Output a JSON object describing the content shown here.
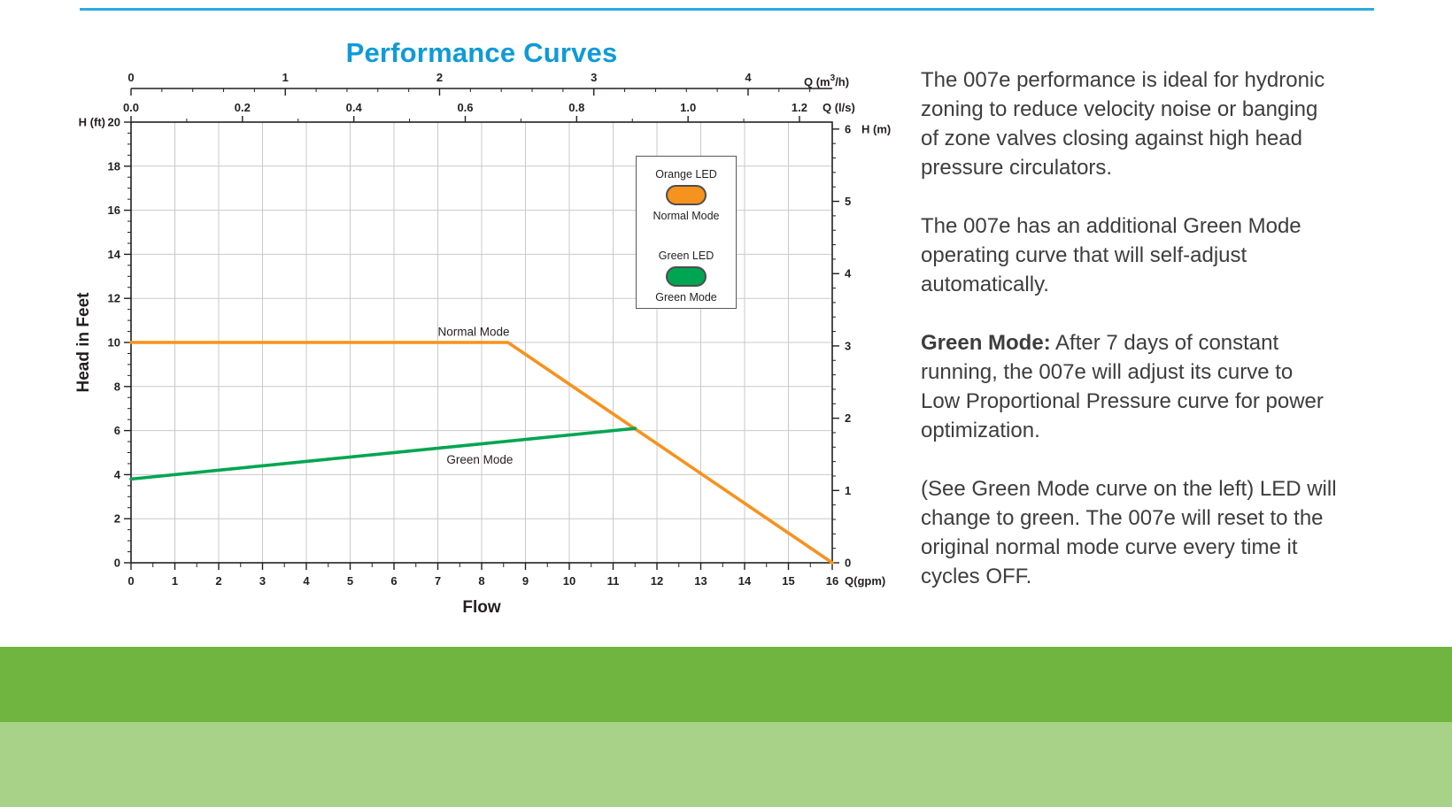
{
  "page": {
    "top_rule_color": "#29abe2"
  },
  "chart_data": {
    "type": "line",
    "title": "Performance Curves",
    "title_color": "#0f9ad8",
    "xlabel": "Flow",
    "ylabel": "Head in Feet",
    "grid": true,
    "legend_position": "upper-right-inside",
    "axes": {
      "gpm": {
        "label": "Q(gpm)",
        "min": 0,
        "max": 16,
        "major_ticks": [
          0,
          1,
          2,
          3,
          4,
          5,
          6,
          7,
          8,
          9,
          10,
          11,
          12,
          13,
          14,
          15,
          16
        ]
      },
      "ft": {
        "label": "H (ft)",
        "min": 0,
        "max": 20,
        "major_ticks": [
          0,
          2,
          4,
          6,
          8,
          10,
          12,
          14,
          16,
          18,
          20
        ]
      },
      "m3h": {
        "label": "Q (m³/h)",
        "ticks": [
          0,
          1,
          2,
          3,
          4
        ],
        "gpm_per_unit": 3.52
      },
      "ls": {
        "label": "Q (l/s)",
        "ticks": [
          0.0,
          0.2,
          0.4,
          0.6,
          0.8,
          1.0,
          1.2
        ],
        "gpm_per_unit": 12.71
      },
      "m": {
        "label": "H (m)",
        "ticks": [
          0,
          1,
          2,
          3,
          4,
          5,
          6
        ],
        "ft_per_unit": 3.2808
      }
    },
    "series": [
      {
        "name": "Normal Mode",
        "color": "#F6921E",
        "points": [
          [
            0,
            10
          ],
          [
            8.6,
            10
          ],
          [
            16,
            0
          ]
        ]
      },
      {
        "name": "Green Mode",
        "color": "#00A551",
        "points": [
          [
            0,
            3.8
          ],
          [
            11.5,
            6.1
          ]
        ]
      }
    ],
    "annotations": [
      {
        "text": "Normal Mode",
        "x": 7.0,
        "y": 10.3
      },
      {
        "text": "Green Mode",
        "x": 7.2,
        "y": 4.5
      }
    ],
    "legend": {
      "items": [
        {
          "led_label": "Orange LED",
          "mode_label": "Normal Mode",
          "color": "#F6921E"
        },
        {
          "led_label": "Green LED",
          "mode_label": "Green Mode",
          "color": "#00A551"
        }
      ]
    }
  },
  "text_panel": {
    "p1": "The 007e performance is ideal for hydronic zoning to reduce velocity noise or banging of zone valves closing against high head pressure circulators.",
    "p2": "The 007e has an additional Green Mode operating curve that will self-adjust automatically.",
    "p3_bold": "Green Mode:",
    "p3_rest": "After 7 days of constant running, the 007e will adjust its curve to Low Proportional Pressure curve for power optimization.",
    "p4": "(See Green Mode curve on the left) LED will change to green.  The 007e will reset to the original normal mode curve every time it cycles OFF."
  },
  "footer": {
    "band_dark_color": "#6fb53f",
    "band_light_color": "#a8d287"
  }
}
